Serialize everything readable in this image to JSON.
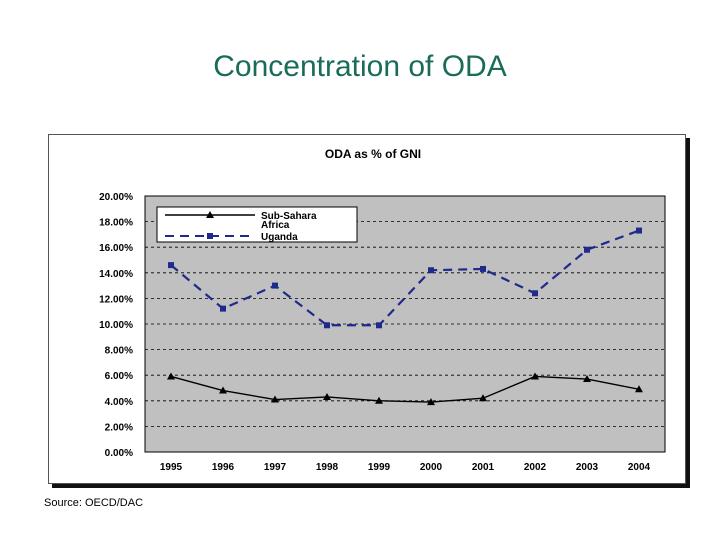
{
  "slide": {
    "title": "Concentration of ODA",
    "source": "Source: OECD/DAC"
  },
  "colors": {
    "title": "#1a6b5a",
    "plot_background": "#c0c0c0",
    "sub_sahara": "#000000",
    "uganda": "#1f2a8c"
  },
  "chart_data": {
    "type": "line",
    "title": "ODA as % of GNI",
    "xlabel": "",
    "ylabel": "",
    "categories": [
      "1995",
      "1996",
      "1997",
      "1998",
      "1999",
      "2000",
      "2001",
      "2002",
      "2003",
      "2004"
    ],
    "ylim": [
      0,
      20
    ],
    "yticks": [
      0,
      2,
      4,
      6,
      8,
      10,
      12,
      14,
      16,
      18,
      20
    ],
    "ytick_labels": [
      "0.00%",
      "2.00%",
      "4.00%",
      "6.00%",
      "8.00%",
      "10.00%",
      "12.00%",
      "14.00%",
      "16.00%",
      "18.00%",
      "20.00%"
    ],
    "grid": true,
    "legend_position": "top-left",
    "series": [
      {
        "name": "Sub-Sahara Africa",
        "legend_lines": [
          "Sub-Sahara",
          "Africa"
        ],
        "marker": "triangle",
        "line_style": "solid",
        "values": [
          5.9,
          4.8,
          4.1,
          4.3,
          4.0,
          3.9,
          4.2,
          5.9,
          5.7,
          4.9
        ]
      },
      {
        "name": "Uganda",
        "legend_lines": [
          "Uganda"
        ],
        "marker": "square",
        "line_style": "dashed",
        "values": [
          14.6,
          11.2,
          13.0,
          9.9,
          9.9,
          14.2,
          14.3,
          12.4,
          15.8,
          17.3
        ]
      }
    ]
  }
}
